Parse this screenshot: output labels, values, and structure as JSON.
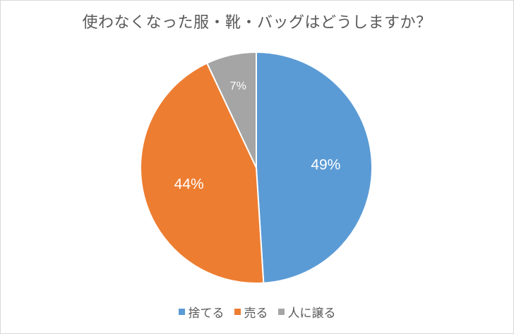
{
  "chart_data": {
    "type": "pie",
    "title": "使わなくなった服・靴・バッグはどうしますか？",
    "categories": [
      "捨てる",
      "売る",
      "人に譲る"
    ],
    "values": [
      49,
      44,
      7
    ],
    "labels": [
      "49%",
      "44%",
      "7%"
    ],
    "colors": [
      "#5B9BD5",
      "#ED7D31",
      "#A5A5A5"
    ],
    "legend_position": "bottom"
  }
}
